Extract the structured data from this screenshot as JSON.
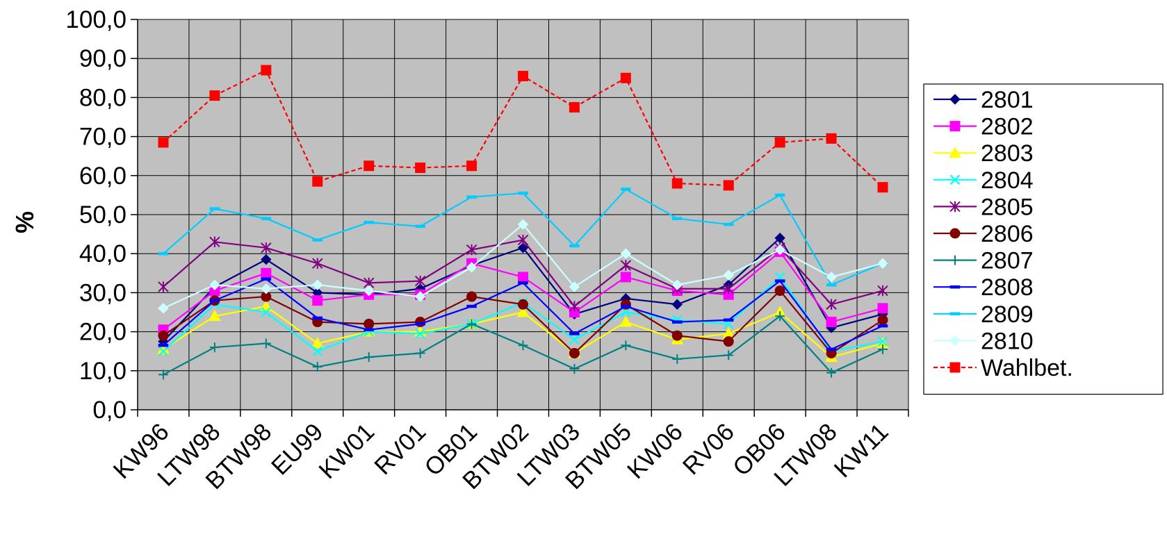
{
  "chart_data": {
    "type": "line",
    "title": "",
    "xlabel": "",
    "ylabel": "%",
    "ylim": [
      0,
      100
    ],
    "ytick_step": 10,
    "ytick_format": "comma_one_decimal",
    "grid": true,
    "plot_background": "#c0c0c0",
    "legend_position": "right",
    "categories": [
      "KW96",
      "LTW98",
      "BTW98",
      "EU99",
      "KW01",
      "RV01",
      "OB01",
      "BTW02",
      "LTW03",
      "BTW05",
      "KW06",
      "RV06",
      "OB06",
      "LTW08",
      "KW11"
    ],
    "series": [
      {
        "name": "2801",
        "color": "#000080",
        "marker": "diamond",
        "dash": false,
        "values": [
          17.5,
          31.5,
          38.5,
          30.0,
          29.5,
          31.0,
          37.0,
          41.5,
          24.5,
          28.5,
          27.0,
          32.0,
          44.0,
          21.0,
          24.5
        ]
      },
      {
        "name": "2802",
        "color": "#ff00ff",
        "marker": "square",
        "dash": false,
        "values": [
          20.5,
          30.5,
          35.0,
          28.0,
          29.5,
          29.5,
          37.5,
          34.0,
          25.0,
          34.0,
          30.5,
          29.5,
          40.5,
          22.5,
          26.0
        ]
      },
      {
        "name": "2803",
        "color": "#ffff00",
        "marker": "triangle",
        "dash": false,
        "values": [
          15.5,
          24.0,
          26.5,
          17.0,
          20.0,
          20.0,
          22.0,
          25.0,
          14.5,
          22.5,
          18.0,
          19.5,
          25.0,
          13.5,
          17.0
        ]
      },
      {
        "name": "2804",
        "color": "#00ffff",
        "marker": "x",
        "dash": false,
        "values": [
          15.0,
          27.0,
          25.0,
          15.0,
          20.0,
          19.5,
          22.0,
          27.5,
          18.0,
          25.0,
          23.0,
          22.0,
          34.0,
          15.0,
          17.5
        ]
      },
      {
        "name": "2805",
        "color": "#800080",
        "marker": "star",
        "dash": false,
        "values": [
          31.5,
          43.0,
          41.5,
          37.5,
          32.5,
          33.0,
          41.0,
          43.5,
          26.5,
          37.0,
          31.0,
          31.0,
          41.5,
          27.0,
          30.5
        ]
      },
      {
        "name": "2806",
        "color": "#800000",
        "marker": "circle",
        "dash": false,
        "values": [
          19.0,
          28.0,
          29.0,
          22.5,
          22.0,
          22.5,
          29.0,
          27.0,
          14.5,
          27.0,
          19.0,
          17.5,
          30.5,
          14.5,
          23.0
        ]
      },
      {
        "name": "2807",
        "color": "#008080",
        "marker": "plus",
        "dash": false,
        "values": [
          9.0,
          16.0,
          17.0,
          11.0,
          13.5,
          14.5,
          22.0,
          16.5,
          10.5,
          16.5,
          13.0,
          14.0,
          24.0,
          9.5,
          15.5
        ]
      },
      {
        "name": "2808",
        "color": "#0000ff",
        "marker": "dash",
        "dash": false,
        "values": [
          16.5,
          28.0,
          33.5,
          23.5,
          20.5,
          22.0,
          26.5,
          32.5,
          19.5,
          26.5,
          22.5,
          23.0,
          33.0,
          15.5,
          21.5
        ]
      },
      {
        "name": "2809",
        "color": "#00ccff",
        "marker": "dash",
        "dash": false,
        "values": [
          40.0,
          51.5,
          49.0,
          43.5,
          48.0,
          47.0,
          54.5,
          55.5,
          42.0,
          56.5,
          49.0,
          47.5,
          55.0,
          32.0,
          37.5
        ]
      },
      {
        "name": "2810",
        "color": "#ccffff",
        "marker": "diamond",
        "dash": false,
        "values": [
          26.0,
          32.0,
          31.0,
          32.0,
          30.5,
          29.0,
          36.5,
          47.5,
          31.5,
          40.0,
          32.0,
          34.5,
          41.0,
          34.0,
          37.5
        ]
      },
      {
        "name": "Wahlbet.",
        "color": "#ff0000",
        "marker": "square",
        "dash": true,
        "values": [
          68.5,
          80.5,
          87.0,
          58.5,
          62.5,
          62.0,
          62.5,
          85.5,
          77.5,
          85.0,
          58.0,
          57.5,
          68.5,
          69.5,
          57.0
        ]
      }
    ]
  }
}
